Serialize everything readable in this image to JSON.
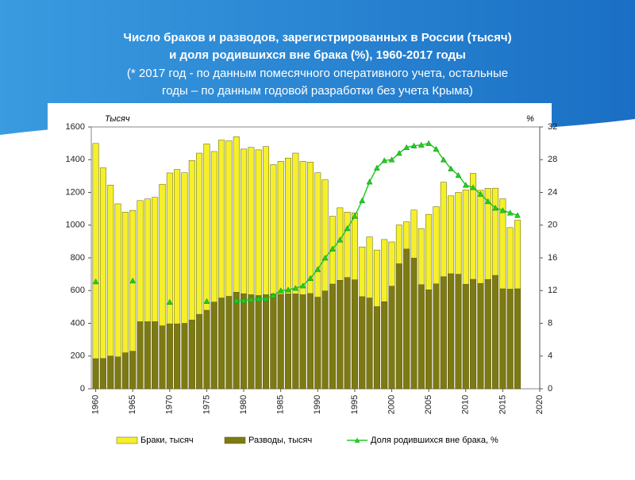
{
  "chart_data": {
    "type": "bar",
    "title": [
      "Число браков и разводов, зарегистрированных в России (тысяч)",
      "и доля родившихся вне брака (%), 1960-2017 годы"
    ],
    "subtitle": [
      "(* 2017 год - по данным помесячного оперативного учета, остальные",
      "годы – по данным годовой разработки без учета Крыма)"
    ],
    "y_label": "Тысяч",
    "y2_label": "%",
    "x": [
      1960,
      1961,
      1962,
      1963,
      1964,
      1965,
      1966,
      1967,
      1968,
      1969,
      1970,
      1971,
      1972,
      1973,
      1974,
      1975,
      1976,
      1977,
      1978,
      1979,
      1980,
      1981,
      1982,
      1983,
      1984,
      1985,
      1986,
      1987,
      1988,
      1989,
      1990,
      1991,
      1992,
      1993,
      1994,
      1995,
      1996,
      1997,
      1998,
      1999,
      2000,
      2001,
      2002,
      2003,
      2004,
      2005,
      2006,
      2007,
      2008,
      2009,
      2010,
      2011,
      2012,
      2013,
      2014,
      2015,
      2016,
      2017
    ],
    "xlim": [
      1959.4,
      2020
    ],
    "xticks": [
      1960,
      1965,
      1970,
      1975,
      1980,
      1985,
      1990,
      1995,
      2000,
      2005,
      2010,
      2015,
      2020
    ],
    "ylim": [
      0,
      1600
    ],
    "yticks": [
      0,
      200,
      400,
      600,
      800,
      1000,
      1200,
      1400,
      1600
    ],
    "y2lim": [
      0,
      32
    ],
    "y2ticks": [
      0,
      4,
      8,
      12,
      16,
      20,
      24,
      28,
      32
    ],
    "series": [
      {
        "name": "Браки, тысяч",
        "type": "bar",
        "color": "#f5f02a",
        "values": [
          1499,
          1350,
          1245,
          1130,
          1080,
          1090,
          1150,
          1160,
          1170,
          1250,
          1319,
          1340,
          1320,
          1395,
          1440,
          1496,
          1450,
          1520,
          1515,
          1540,
          1465,
          1475,
          1460,
          1480,
          1370,
          1390,
          1410,
          1440,
          1390,
          1385,
          1320,
          1277,
          1054,
          1106,
          1080,
          1075,
          867,
          928,
          848,
          912,
          897,
          1001,
          1020,
          1092,
          979,
          1066,
          1113,
          1262,
          1179,
          1200,
          1215,
          1316,
          1213,
          1225,
          1226,
          1161,
          985,
          1030
        ]
      },
      {
        "name": "Разводы, тысяч",
        "type": "bar",
        "color": "#7d7a14",
        "values": [
          184,
          185,
          200,
          195,
          220,
          230,
          410,
          410,
          410,
          385,
          397,
          397,
          400,
          420,
          455,
          480,
          530,
          555,
          565,
          590,
          581,
          575,
          570,
          575,
          580,
          577,
          580,
          580,
          575,
          582,
          560,
          598,
          640,
          663,
          680,
          666,
          563,
          555,
          502,
          532,
          627,
          764,
          854,
          799,
          636,
          605,
          641,
          685,
          703,
          700,
          639,
          669,
          644,
          668,
          693,
          611,
          609,
          611
        ]
      },
      {
        "name": "Доля родившихся вне брака, %",
        "type": "line",
        "axis": "y2",
        "color": "#22cc22",
        "values": [
          13.1,
          null,
          null,
          null,
          null,
          13.2,
          null,
          null,
          null,
          null,
          10.6,
          null,
          null,
          null,
          null,
          10.7,
          null,
          null,
          null,
          10.8,
          10.8,
          10.9,
          11.0,
          11.0,
          11.4,
          12.0,
          12.1,
          12.3,
          12.6,
          13.5,
          14.6,
          16.0,
          17.1,
          18.2,
          19.6,
          21.1,
          23.0,
          25.3,
          27.0,
          27.9,
          28.0,
          28.8,
          29.5,
          29.7,
          29.8,
          30.0,
          29.3,
          28.0,
          26.9,
          26.1,
          24.9,
          24.6,
          23.8,
          22.9,
          22.1,
          21.8,
          21.5,
          21.2
        ]
      }
    ]
  }
}
